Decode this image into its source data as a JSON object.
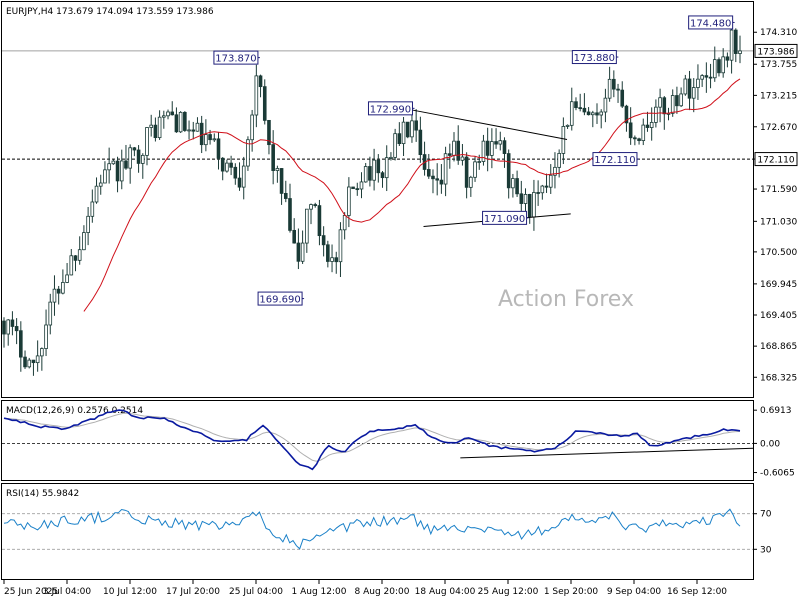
{
  "chart_data": [
    {
      "type": "candlestick",
      "header": "EURJPY,H4  173.679 174.094 173.559 173.986",
      "watermark": "Action Forex",
      "ylim": [
        168.0,
        174.8
      ],
      "y_ticks": [
        "174.310",
        "173.755",
        "173.215",
        "172.670",
        "172.110",
        "171.590",
        "171.030",
        "170.500",
        "169.945",
        "169.405",
        "168.865",
        "168.325"
      ],
      "x_ticks": [
        "25 Jun 2025",
        "3 Jul 04:00",
        "10 Jul 12:00",
        "17 Jul 20:00",
        "25 Jul 04:00",
        "1 Aug 12:00",
        "8 Aug 20:00",
        "18 Aug 04:00",
        "25 Aug 12:00",
        "1 Sep 20:00",
        "9 Sep 04:00",
        "16 Sep 12:00"
      ],
      "last_price": "173.986",
      "reference_level": "172.110",
      "sma_color": "#d0101a",
      "candle_color": "#1a3a36",
      "annotations": [
        {
          "label": "173.870",
          "value": 173.87,
          "x_frac": 0.345
        },
        {
          "label": "169.690",
          "value": 169.69,
          "x_frac": 0.405
        },
        {
          "label": "172.990",
          "value": 172.99,
          "x_frac": 0.555
        },
        {
          "label": "171.090",
          "value": 171.09,
          "x_frac": 0.71
        },
        {
          "label": "173.880",
          "value": 173.88,
          "x_frac": 0.832
        },
        {
          "label": "172.110",
          "value": 172.11,
          "x_frac": 0.86
        },
        {
          "label": "174.480",
          "value": 174.48,
          "x_frac": 0.99
        }
      ],
      "anchors": [
        [
          0.0,
          169.3
        ],
        [
          0.04,
          168.5
        ],
        [
          0.07,
          169.8
        ],
        [
          0.1,
          170.6
        ],
        [
          0.13,
          171.8
        ],
        [
          0.155,
          171.9
        ],
        [
          0.18,
          172.2
        ],
        [
          0.2,
          172.6
        ],
        [
          0.225,
          172.9
        ],
        [
          0.25,
          172.6
        ],
        [
          0.28,
          172.4
        ],
        [
          0.3,
          172.0
        ],
        [
          0.32,
          171.8
        ],
        [
          0.345,
          173.5
        ],
        [
          0.36,
          172.3
        ],
        [
          0.38,
          171.4
        ],
        [
          0.4,
          170.2
        ],
        [
          0.415,
          171.5
        ],
        [
          0.43,
          170.8
        ],
        [
          0.45,
          170.2
        ],
        [
          0.47,
          171.5
        ],
        [
          0.49,
          172.0
        ],
        [
          0.51,
          171.8
        ],
        [
          0.53,
          172.4
        ],
        [
          0.555,
          172.7
        ],
        [
          0.57,
          171.8
        ],
        [
          0.59,
          171.5
        ],
        [
          0.61,
          172.5
        ],
        [
          0.63,
          171.6
        ],
        [
          0.65,
          172.3
        ],
        [
          0.67,
          172.5
        ],
        [
          0.69,
          171.6
        ],
        [
          0.71,
          171.3
        ],
        [
          0.73,
          171.4
        ],
        [
          0.75,
          172.2
        ],
        [
          0.77,
          173.0
        ],
        [
          0.79,
          172.8
        ],
        [
          0.81,
          172.7
        ],
        [
          0.83,
          173.6
        ],
        [
          0.845,
          172.7
        ],
        [
          0.86,
          172.5
        ],
        [
          0.88,
          172.9
        ],
        [
          0.9,
          173.0
        ],
        [
          0.92,
          173.3
        ],
        [
          0.94,
          173.4
        ],
        [
          0.96,
          173.7
        ],
        [
          0.975,
          173.8
        ],
        [
          0.99,
          174.2
        ],
        [
          1.0,
          173.99
        ]
      ],
      "trendlines": [
        {
          "from": [
            0.555,
            172.96
          ],
          "to": [
            0.765,
            172.45
          ]
        },
        {
          "from": [
            0.57,
            170.94
          ],
          "to": [
            0.77,
            171.16
          ]
        }
      ]
    },
    {
      "type": "line",
      "title": "MACD(12,26,9) 0.2576 0.2514",
      "ylim": [
        -0.72,
        0.82
      ],
      "y_ticks": [
        {
          "label": "0.6913",
          "value": 0.6913
        },
        {
          "label": "0.00",
          "value": 0.0
        },
        {
          "label": "-0.6065",
          "value": -0.6065
        }
      ],
      "macd_color": "#0a1aa0",
      "signal_color": "#b0b0b0",
      "trendline": {
        "from": [
          0.62,
          -0.3
        ],
        "to": [
          1.0,
          -0.1
        ]
      },
      "anchors": [
        [
          0.0,
          0.52
        ],
        [
          0.05,
          0.35
        ],
        [
          0.08,
          0.3
        ],
        [
          0.12,
          0.5
        ],
        [
          0.155,
          0.72
        ],
        [
          0.18,
          0.55
        ],
        [
          0.22,
          0.5
        ],
        [
          0.25,
          0.3
        ],
        [
          0.29,
          0.05
        ],
        [
          0.33,
          0.08
        ],
        [
          0.35,
          0.38
        ],
        [
          0.37,
          0.1
        ],
        [
          0.4,
          -0.45
        ],
        [
          0.42,
          -0.52
        ],
        [
          0.44,
          -0.05
        ],
        [
          0.46,
          -0.2
        ],
        [
          0.48,
          0.1
        ],
        [
          0.5,
          0.25
        ],
        [
          0.54,
          0.3
        ],
        [
          0.555,
          0.4
        ],
        [
          0.59,
          0.05
        ],
        [
          0.61,
          0.0
        ],
        [
          0.63,
          0.1
        ],
        [
          0.66,
          -0.05
        ],
        [
          0.69,
          -0.12
        ],
        [
          0.72,
          -0.17
        ],
        [
          0.75,
          -0.1
        ],
        [
          0.78,
          0.28
        ],
        [
          0.8,
          0.22
        ],
        [
          0.83,
          0.15
        ],
        [
          0.86,
          0.2
        ],
        [
          0.88,
          -0.06
        ],
        [
          0.9,
          0.0
        ],
        [
          0.93,
          0.12
        ],
        [
          0.96,
          0.2
        ],
        [
          0.98,
          0.3
        ],
        [
          1.0,
          0.26
        ]
      ]
    },
    {
      "type": "line",
      "title": "RSI(14) 55.9842",
      "ylim": [
        0,
        100
      ],
      "y_ticks": [
        {
          "label": "70",
          "value": 70
        },
        {
          "label": "30",
          "value": 30
        }
      ],
      "rsi_color": "#1a80c8",
      "anchors": [
        [
          0.0,
          60
        ],
        [
          0.04,
          55
        ],
        [
          0.08,
          62
        ],
        [
          0.12,
          65
        ],
        [
          0.155,
          70
        ],
        [
          0.2,
          62
        ],
        [
          0.25,
          58
        ],
        [
          0.3,
          55
        ],
        [
          0.345,
          68
        ],
        [
          0.37,
          48
        ],
        [
          0.4,
          35
        ],
        [
          0.42,
          40
        ],
        [
          0.45,
          50
        ],
        [
          0.48,
          58
        ],
        [
          0.52,
          62
        ],
        [
          0.555,
          65
        ],
        [
          0.58,
          50
        ],
        [
          0.61,
          58
        ],
        [
          0.64,
          52
        ],
        [
          0.67,
          55
        ],
        [
          0.69,
          45
        ],
        [
          0.72,
          48
        ],
        [
          0.75,
          58
        ],
        [
          0.78,
          66
        ],
        [
          0.81,
          60
        ],
        [
          0.83,
          68
        ],
        [
          0.85,
          52
        ],
        [
          0.88,
          55
        ],
        [
          0.91,
          60
        ],
        [
          0.94,
          58
        ],
        [
          0.97,
          66
        ],
        [
          0.99,
          72
        ],
        [
          1.0,
          56
        ]
      ]
    }
  ]
}
